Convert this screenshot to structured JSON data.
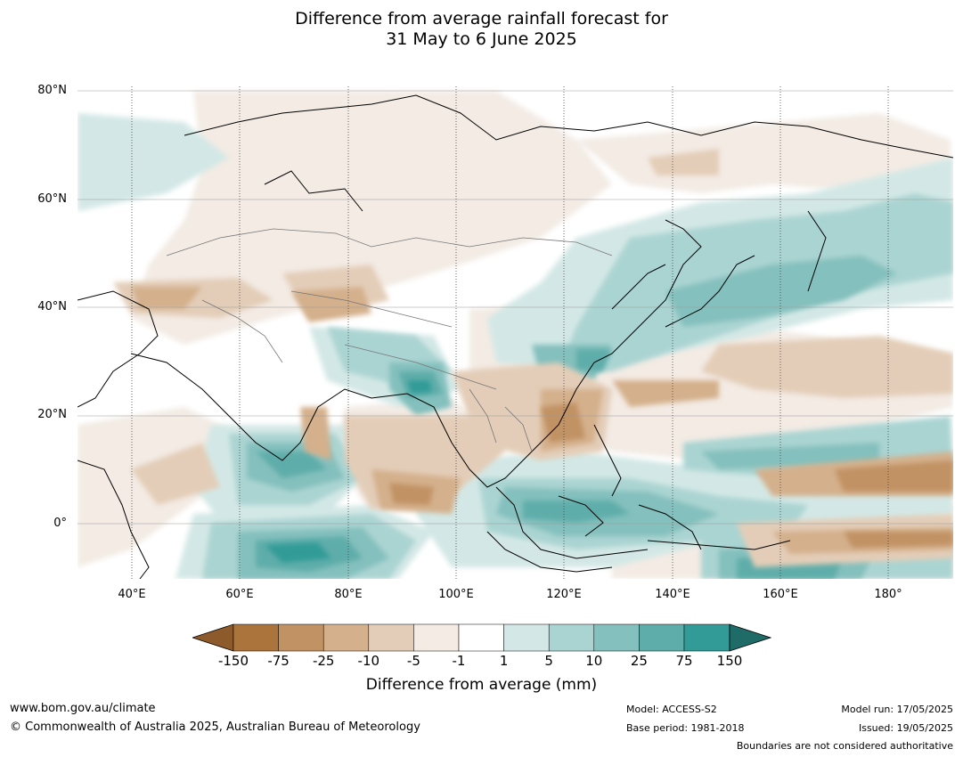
{
  "title": {
    "line1": "Difference from average rainfall forecast for",
    "line2": "31 May to 6 June 2025"
  },
  "map": {
    "latitude_labels": [
      "80°N",
      "60°N",
      "40°N",
      "20°N",
      "0°"
    ],
    "longitude_labels": [
      "40°E",
      "60°E",
      "80°E",
      "100°E",
      "120°E",
      "140°E",
      "160°E",
      "180°"
    ],
    "extent": {
      "lon_min": 30,
      "lon_max": 192,
      "lat_min": -10,
      "lat_max": 81
    }
  },
  "colorbar": {
    "ticks": [
      "-150",
      "-75",
      "-25",
      "-10",
      "-5",
      "-1",
      "1",
      "5",
      "10",
      "25",
      "75",
      "150"
    ],
    "colors": {
      "lt_neg150": "#8c5a2b",
      "neg150_neg75": "#ab743c",
      "neg75_neg25": "#c19264",
      "neg25_neg10": "#d4b08c",
      "neg10_neg5": "#e3cdb8",
      "neg5_neg1": "#f3ebe4",
      "neg1_1": "#ffffff",
      "1_5": "#d3e8e6",
      "5_10": "#aad4d2",
      "10_25": "#84c0bd",
      "25_75": "#5eadaa",
      "75_150": "#339b97",
      "gt_150": "#1f6b68"
    },
    "label": "Difference from average (mm)"
  },
  "footer": {
    "website": "www.bom.gov.au/climate",
    "copyright": "© Commonwealth of Australia 2025, Australian Bureau of Meteorology",
    "model": "Model: ACCESS-S2",
    "base_period": "Base period: 1981-2018",
    "model_run": "Model run: 17/05/2025",
    "issued": "Issued: 19/05/2025",
    "disclaimer": "Boundaries are not considered authoritative"
  }
}
